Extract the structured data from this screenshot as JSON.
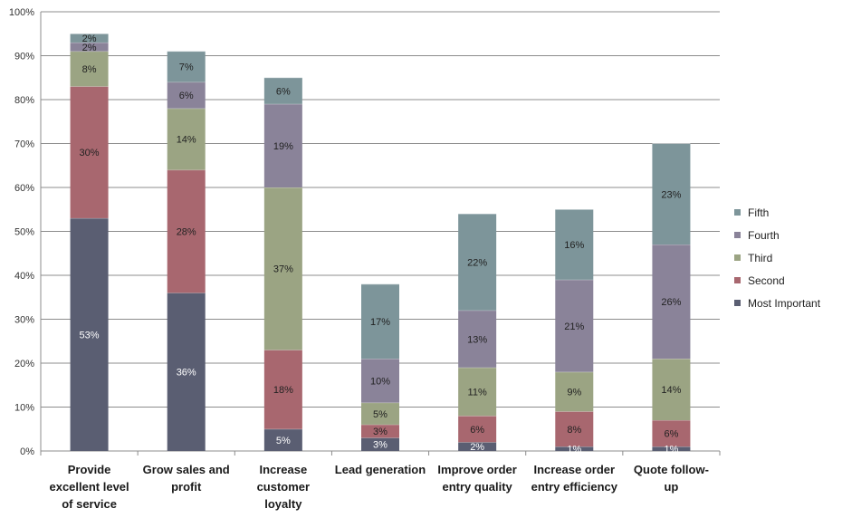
{
  "chart_data": {
    "type": "bar",
    "stacked": true,
    "title": "",
    "xlabel": "",
    "ylabel": "",
    "ylim": [
      0,
      100
    ],
    "y_ticks": [
      "0%",
      "10%",
      "20%",
      "30%",
      "40%",
      "50%",
      "60%",
      "70%",
      "80%",
      "90%",
      "100%"
    ],
    "grid": true,
    "legend_position": "right",
    "categories": [
      [
        "Provide",
        "excellent level",
        "of service"
      ],
      [
        "Grow sales and",
        "profit"
      ],
      [
        "Increase",
        "customer",
        "loyalty"
      ],
      [
        "Lead generation"
      ],
      [
        "Improve order",
        "entry quality"
      ],
      [
        "Increase order",
        "entry efficiency"
      ],
      [
        "Quote follow-",
        "up"
      ]
    ],
    "series": [
      {
        "name": "Most Important",
        "color": "#5a5e72",
        "label_color": "#ffffff",
        "values": [
          53,
          36,
          5,
          3,
          2,
          1,
          1
        ],
        "labels": [
          "53%",
          "36%",
          "5%",
          "3%",
          "2%",
          "1%",
          "1%"
        ]
      },
      {
        "name": "Second",
        "color": "#a8676f",
        "label_color": "#222222",
        "values": [
          30,
          28,
          18,
          3,
          6,
          8,
          6
        ],
        "labels": [
          "30%",
          "28%",
          "18%",
          "3%",
          "6%",
          "8%",
          "6%"
        ]
      },
      {
        "name": "Third",
        "color": "#9ba483",
        "label_color": "#222222",
        "values": [
          8,
          14,
          37,
          5,
          11,
          9,
          14
        ],
        "labels": [
          "8%",
          "14%",
          "37%",
          "5%",
          "11%",
          "9%",
          "14%"
        ]
      },
      {
        "name": "Fourth",
        "color": "#8a8399",
        "label_color": "#222222",
        "values": [
          2,
          6,
          19,
          10,
          13,
          21,
          26
        ],
        "labels": [
          "2%",
          "6%",
          "19%",
          "10%",
          "13%",
          "21%",
          "26%"
        ]
      },
      {
        "name": "Fifth",
        "color": "#7d959a",
        "label_color": "#222222",
        "values": [
          2,
          7,
          6,
          17,
          22,
          16,
          23
        ],
        "labels": [
          "2%",
          "7%",
          "6%",
          "17%",
          "22%",
          "16%",
          "23%"
        ]
      }
    ],
    "legend_order": [
      "Fifth",
      "Fourth",
      "Third",
      "Second",
      "Most Important"
    ]
  }
}
